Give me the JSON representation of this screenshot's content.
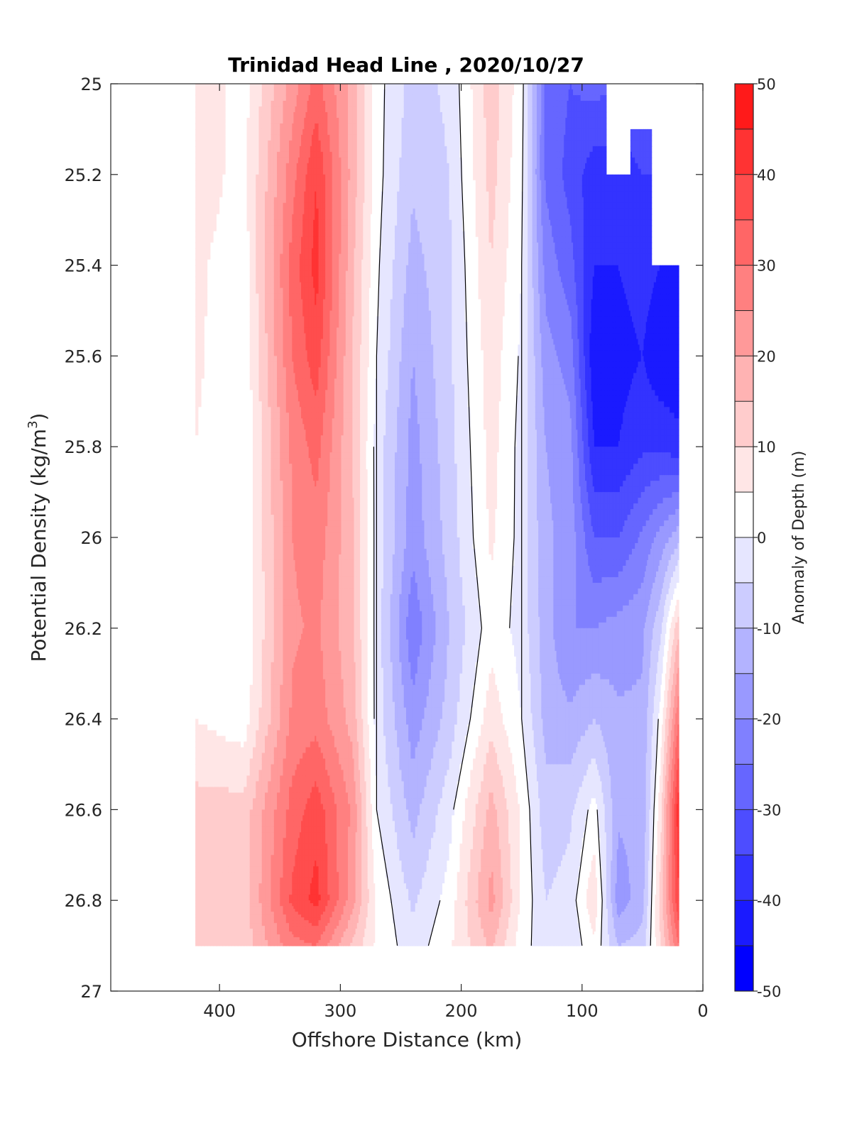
{
  "chart_data": {
    "type": "heatmap",
    "title": "Trinidad Head Line , 2020/10/27",
    "xlabel": "Offshore Distance (km)",
    "ylabel_main": "Potential Density (kg/m",
    "ylabel_sup": "3",
    "ylabel_close": ")",
    "xlim": [
      490,
      0
    ],
    "ylim": [
      25,
      27
    ],
    "x_ticks": [
      400,
      300,
      200,
      100,
      0
    ],
    "x_tick_labels": [
      "400",
      "300",
      "200",
      "100",
      "0"
    ],
    "y_ticks": [
      25,
      25.2,
      25.4,
      25.6,
      25.8,
      26,
      26.2,
      26.4,
      26.6,
      26.8,
      27
    ],
    "y_tick_labels": [
      "25",
      "25.2",
      "25.4",
      "25.6",
      "25.8",
      "26",
      "26.2",
      "26.4",
      "26.6",
      "26.8",
      "27"
    ],
    "colorbar": {
      "label": "Anomaly of Depth (m)",
      "levels": [
        -50,
        -45,
        -40,
        -35,
        -30,
        -25,
        -20,
        -15,
        -10,
        -5,
        0,
        5,
        10,
        15,
        20,
        25,
        30,
        35,
        40,
        45,
        50
      ],
      "tick_values": [
        -50,
        -40,
        -30,
        -20,
        -10,
        0,
        10,
        20,
        30,
        40,
        50
      ],
      "tick_labels": [
        "-50",
        "-40",
        "-30",
        "-20",
        "-10",
        "0",
        "10",
        "20",
        "30",
        "40",
        "50"
      ],
      "colors": [
        "#0000ff",
        "#1a1aff",
        "#3333ff",
        "#4d4dff",
        "#6666ff",
        "#8080ff",
        "#9999ff",
        "#b3b3ff",
        "#ccccff",
        "#e6e6ff",
        "#ffffff",
        "#ffe6e6",
        "#ffcccc",
        "#ffb3b3",
        "#ff9999",
        "#ff8080",
        "#ff6666",
        "#ff4d4d",
        "#ff3333",
        "#ff1a1a"
      ]
    },
    "sigma": [
      25.0,
      25.2,
      25.4,
      25.6,
      25.8,
      26.0,
      26.2,
      26.4,
      26.6,
      26.8,
      26.9
    ],
    "columns": [
      {
        "x": 420,
        "values": [
          8,
          8,
          6,
          6,
          5,
          5,
          5,
          5,
          12,
          12,
          12
        ],
        "sigma_min": 25.0,
        "sigma_max": 26.9
      },
      {
        "x": 380,
        "values": [
          3,
          3,
          2,
          1,
          0,
          0,
          0,
          2,
          12,
          12,
          12
        ],
        "sigma_min": 25.0,
        "sigma_max": 26.9
      },
      {
        "x": 340,
        "values": [
          22,
          28,
          32,
          30,
          26,
          25,
          24,
          26,
          32,
          36,
          28
        ],
        "sigma_min": 25.0,
        "sigma_max": 26.9
      },
      {
        "x": 320,
        "values": [
          32,
          40,
          42,
          38,
          32,
          28,
          26,
          28,
          38,
          42,
          30
        ],
        "sigma_min": 25.0,
        "sigma_max": 26.9
      },
      {
        "x": 290,
        "values": [
          18,
          18,
          16,
          15,
          15,
          16,
          16,
          18,
          24,
          22,
          14
        ],
        "sigma_min": 25.0,
        "sigma_max": 26.9
      },
      {
        "x": 270,
        "values": [
          2,
          2,
          1,
          0,
          -2,
          -2,
          -2,
          -2,
          0,
          4,
          4
        ],
        "sigma_min": 25.0,
        "sigma_max": 26.9
      },
      {
        "x": 240,
        "values": [
          -7,
          -9,
          -12,
          -15,
          -17,
          -18,
          -24,
          -18,
          -12,
          -6,
          -3
        ],
        "sigma_min": 25.0,
        "sigma_max": 26.9
      },
      {
        "x": 210,
        "values": [
          -4,
          -5,
          -6,
          -6,
          -7,
          -8,
          -10,
          -8,
          -2,
          2,
          4
        ],
        "sigma_min": 25.0,
        "sigma_max": 26.9
      },
      {
        "x": 175,
        "values": [
          13,
          12,
          10,
          8,
          7,
          6,
          3,
          8,
          17,
          22,
          16
        ],
        "sigma_min": 25.0,
        "sigma_max": 26.9
      },
      {
        "x": 150,
        "values": [
          2,
          1,
          0,
          -1,
          -2,
          -2,
          -2,
          0,
          4,
          4,
          2
        ],
        "sigma_min": 25.0,
        "sigma_max": 26.9
      },
      {
        "x": 130,
        "values": [
          -26,
          -26,
          -22,
          -18,
          -15,
          -14,
          -13,
          -12,
          -8,
          -5,
          -3
        ],
        "sigma_min": 25.0,
        "sigma_max": 26.9
      },
      {
        "x": 110,
        "values": [
          -30,
          -32,
          -28,
          -22,
          -18,
          -17,
          -20,
          -14,
          -6,
          -3,
          -4
        ],
        "sigma_min": 25.0,
        "sigma_max": 26.9
      },
      {
        "x": 90,
        "values": [
          -28,
          -38,
          -40,
          -44,
          -40,
          -30,
          -20,
          -10,
          2,
          9,
          4
        ],
        "sigma_min": 25.0,
        "sigma_max": 26.9
      },
      {
        "x": 70,
        "values": [
          -30,
          -38,
          -40,
          -42,
          -40,
          -30,
          -18,
          -14,
          -14,
          -18,
          -10
        ],
        "sigma_min": 25.2,
        "sigma_max": 26.9
      },
      {
        "x": 50,
        "values": [
          -30,
          -35,
          -38,
          -40,
          -36,
          -24,
          -16,
          -14,
          -14,
          -12,
          -8
        ],
        "sigma_min": 25.1,
        "sigma_max": 26.9
      },
      {
        "x": 35,
        "values": [
          -30,
          -35,
          -40,
          -44,
          -36,
          -18,
          -6,
          2,
          8,
          12,
          10
        ],
        "sigma_min": 25.4,
        "sigma_max": 26.9
      },
      {
        "x": 20,
        "values": [
          -30,
          -35,
          -40,
          -45,
          -38,
          -12,
          14,
          30,
          44,
          40,
          30
        ],
        "sigma_min": 25.4,
        "sigma_max": 26.9
      }
    ]
  }
}
